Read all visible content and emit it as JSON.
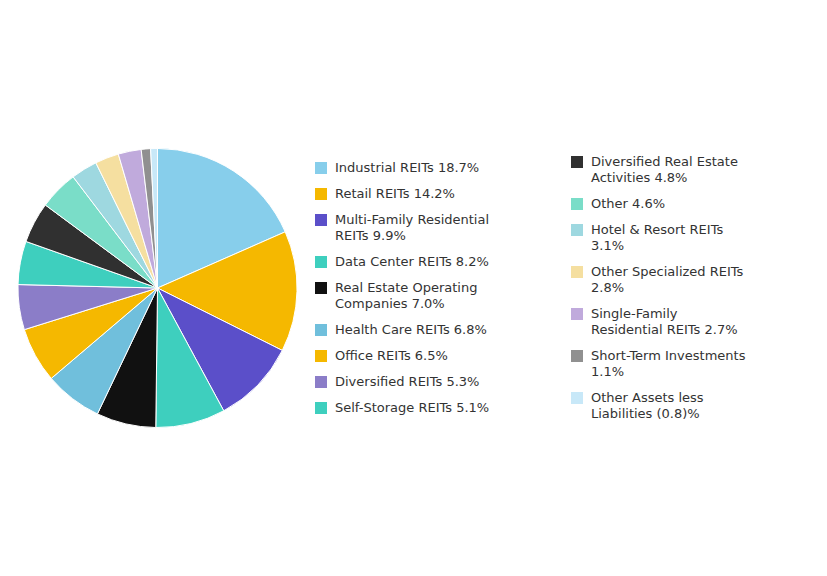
{
  "chart_data": {
    "type": "pie",
    "categories": [
      "Industrial REITs 18.7%",
      "Retail REITs 14.2%",
      "Multi-Family Residential\nREITs 9.9%",
      "Data Center REITs 8.2%",
      "Real Estate Operating\nCompanies 7.0%",
      "Health Care REITs 6.8%",
      "Office REITs 6.5%",
      "Diversified REITs 5.3%",
      "Self-Storage REITs 5.1%",
      "Diversified Real Estate\nActivities 4.8%",
      "Other 4.6%",
      "Hotel & Resort REITs\n3.1%",
      "Other Specialized REITs\n2.8%",
      "Single-Family\nResidential REITs 2.7%",
      "Short-Term Investments\n1.1%",
      "Other Assets less\nLiabilities (0.8)%"
    ],
    "values": [
      18.7,
      14.2,
      9.9,
      8.2,
      7.0,
      6.8,
      6.5,
      5.3,
      5.1,
      4.8,
      4.6,
      3.1,
      2.8,
      2.7,
      1.1,
      0.8
    ],
    "colors": [
      "#87CEEB",
      "#F5B800",
      "#5B4FC9",
      "#3ECFBE",
      "#111111",
      "#70BFDC",
      "#F5B800",
      "#8B7DC8",
      "#3ECFBE",
      "#303030",
      "#7ADDC8",
      "#9ED8E0",
      "#F5DFA0",
      "#C0AADC",
      "#909090",
      "#C8E8F8"
    ],
    "legend": "right"
  }
}
